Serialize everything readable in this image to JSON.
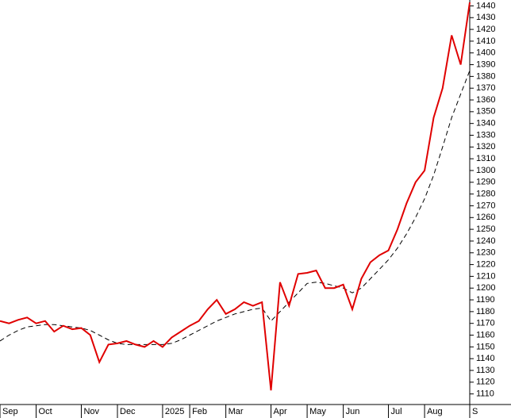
{
  "chart_data": {
    "type": "line",
    "categories": [
      "Sep",
      null,
      null,
      null,
      "Oct",
      null,
      null,
      null,
      null,
      "Nov",
      null,
      null,
      null,
      "Dec",
      null,
      null,
      null,
      null,
      "2025",
      null,
      null,
      "Feb",
      null,
      null,
      null,
      "Mar",
      null,
      null,
      null,
      null,
      "Apr",
      null,
      null,
      null,
      "May",
      null,
      null,
      null,
      "Jun",
      null,
      null,
      null,
      null,
      "Jul",
      null,
      null,
      null,
      "Aug",
      null,
      null,
      null,
      null,
      "S"
    ],
    "series": [
      {
        "color": "#e00000",
        "style": "solid",
        "values": [
          1172,
          1170,
          1173,
          1175,
          1170,
          1172,
          1163,
          1168,
          1165,
          1166,
          1160,
          1137,
          1152,
          1153,
          1155,
          1152,
          1150,
          1155,
          1150,
          1158,
          1163,
          1168,
          1172,
          1182,
          1190,
          1178,
          1182,
          1188,
          1185,
          1188,
          1113,
          1205,
          1185,
          1212,
          1213,
          1215,
          1200,
          1200,
          1203,
          1182,
          1208,
          1222,
          1228,
          1232,
          1250,
          1272,
          1290,
          1300,
          1345,
          1370,
          1415,
          1390,
          1443
        ]
      },
      {
        "color": "#000000",
        "style": "dashed",
        "values": [
          1155,
          1160,
          1164,
          1167,
          1168,
          1169,
          1169,
          1168,
          1167,
          1166,
          1164,
          1160,
          1156,
          1153,
          1152,
          1152,
          1152,
          1152,
          1152,
          1153,
          1156,
          1160,
          1164,
          1168,
          1172,
          1175,
          1178,
          1180,
          1182,
          1183,
          1172,
          1180,
          1188,
          1196,
          1204,
          1205,
          1204,
          1202,
          1200,
          1196,
          1200,
          1208,
          1216,
          1224,
          1234,
          1246,
          1260,
          1276,
          1296,
          1320,
          1345,
          1365,
          1385
        ]
      }
    ],
    "ylim": [
      1101,
      1445
    ],
    "yticks": [
      1110,
      1120,
      1130,
      1140,
      1150,
      1160,
      1170,
      1180,
      1190,
      1200,
      1210,
      1220,
      1230,
      1240,
      1250,
      1260,
      1270,
      1280,
      1290,
      1300,
      1310,
      1320,
      1330,
      1340,
      1350,
      1360,
      1370,
      1380,
      1390,
      1400,
      1410,
      1420,
      1430,
      1440
    ],
    "y_axis_side": "right",
    "grid": false
  }
}
